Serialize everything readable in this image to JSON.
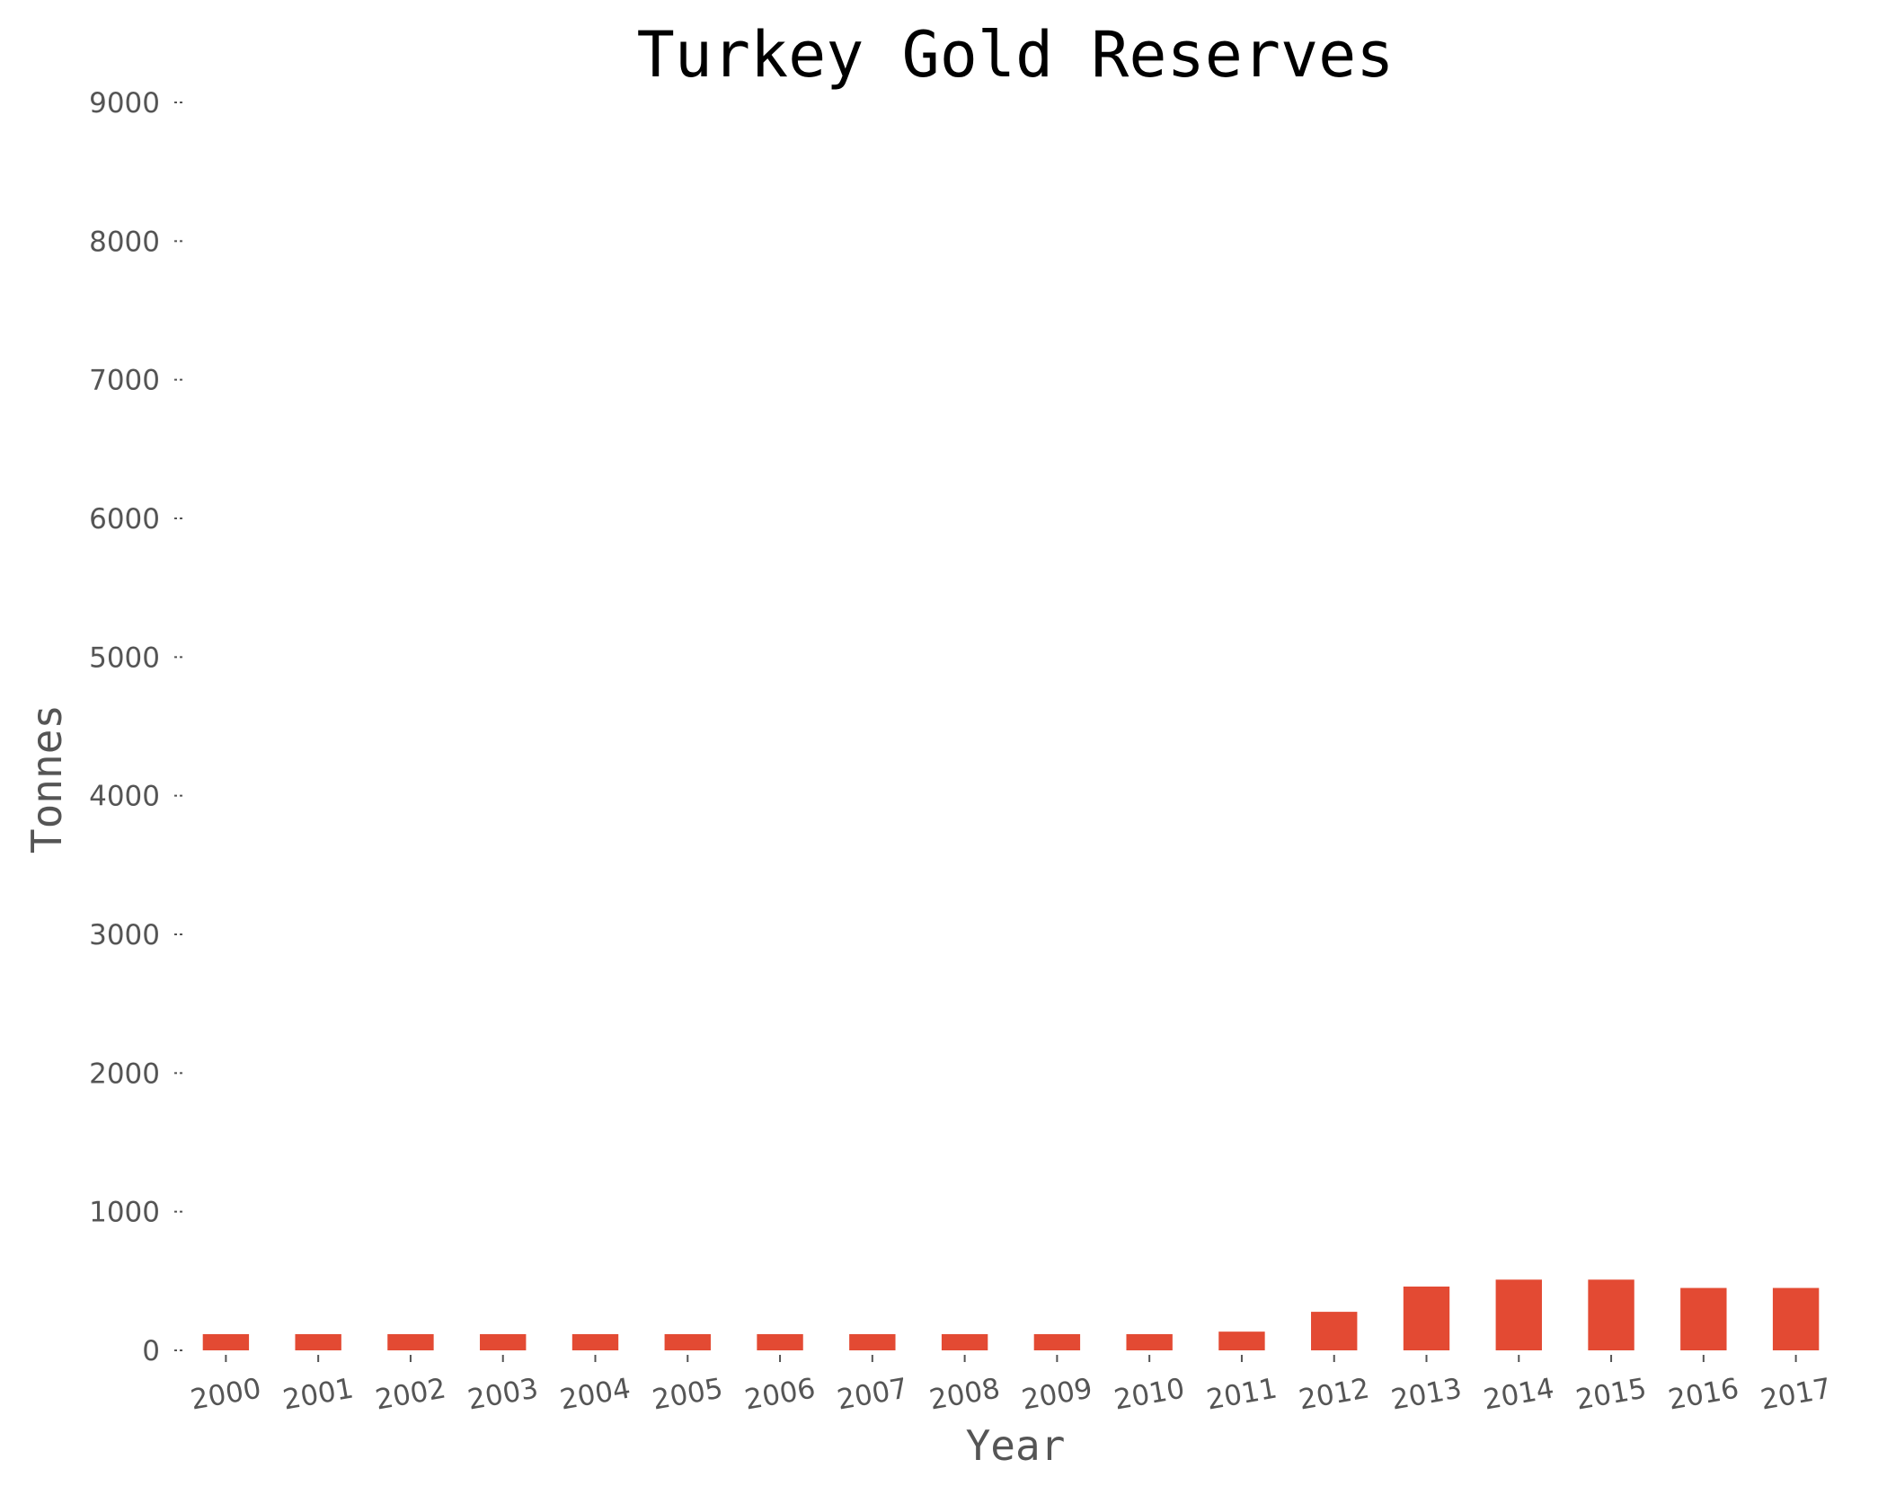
{
  "chart_data": {
    "type": "bar",
    "title": "Turkey Gold Reserves",
    "xlabel": "Year",
    "ylabel": "Tonnes",
    "ylim": [
      0,
      9000
    ],
    "yticks": [
      "0",
      "1000",
      "2000",
      "3000",
      "4000",
      "5000",
      "6000",
      "7000",
      "8000",
      "9000"
    ],
    "categories": [
      "2000",
      "2001",
      "2002",
      "2003",
      "2004",
      "2005",
      "2006",
      "2007",
      "2008",
      "2009",
      "2010",
      "2011",
      "2012",
      "2013",
      "2014",
      "2015",
      "2016",
      "2017"
    ],
    "values": [
      117,
      117,
      117,
      117,
      117,
      117,
      117,
      117,
      117,
      117,
      117,
      135,
      278,
      460,
      510,
      510,
      450,
      450
    ],
    "bar_color": "#e34a33",
    "grid": false,
    "x_tick_rotation_deg": -10
  }
}
